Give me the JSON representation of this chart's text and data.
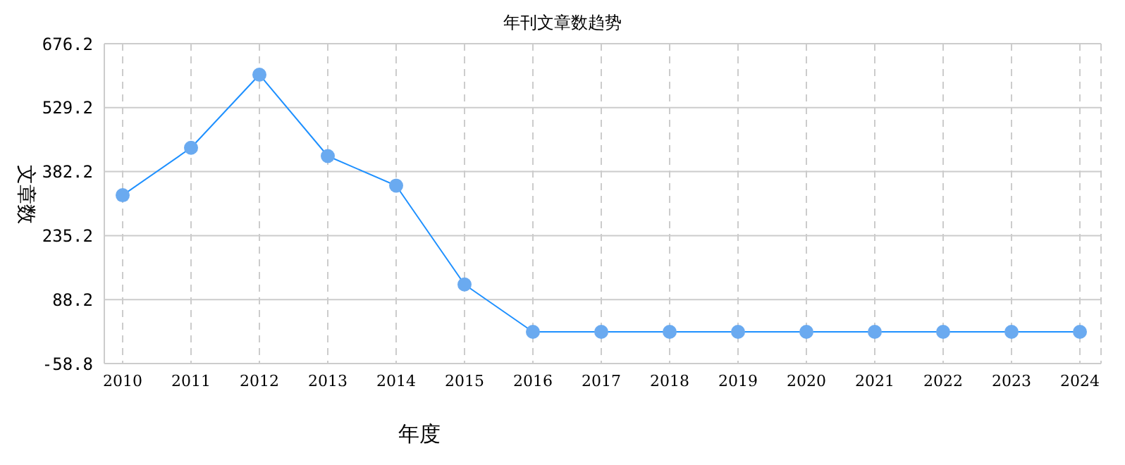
{
  "chart_data": {
    "type": "line",
    "title": "年刊文章数趋势",
    "xlabel": "年度",
    "ylabel": "文章数",
    "categories": [
      "2010",
      "2011",
      "2012",
      "2013",
      "2014",
      "2015",
      "2016",
      "2017",
      "2018",
      "2019",
      "2020",
      "2021",
      "2022",
      "2023",
      "2024"
    ],
    "series": [
      {
        "color": "#1e90ff",
        "values": [
          328,
          437,
          605,
          418,
          350,
          123,
          14,
          14,
          14,
          14,
          14,
          14,
          14,
          14,
          14
        ]
      }
    ],
    "ylim": [
      -58.8,
      676.2
    ],
    "yticks": [
      -58.8,
      88.2,
      235.2,
      382.2,
      529.2,
      676.2
    ],
    "grid": true,
    "legend": false,
    "marker": "circle",
    "line_style": "solid"
  }
}
